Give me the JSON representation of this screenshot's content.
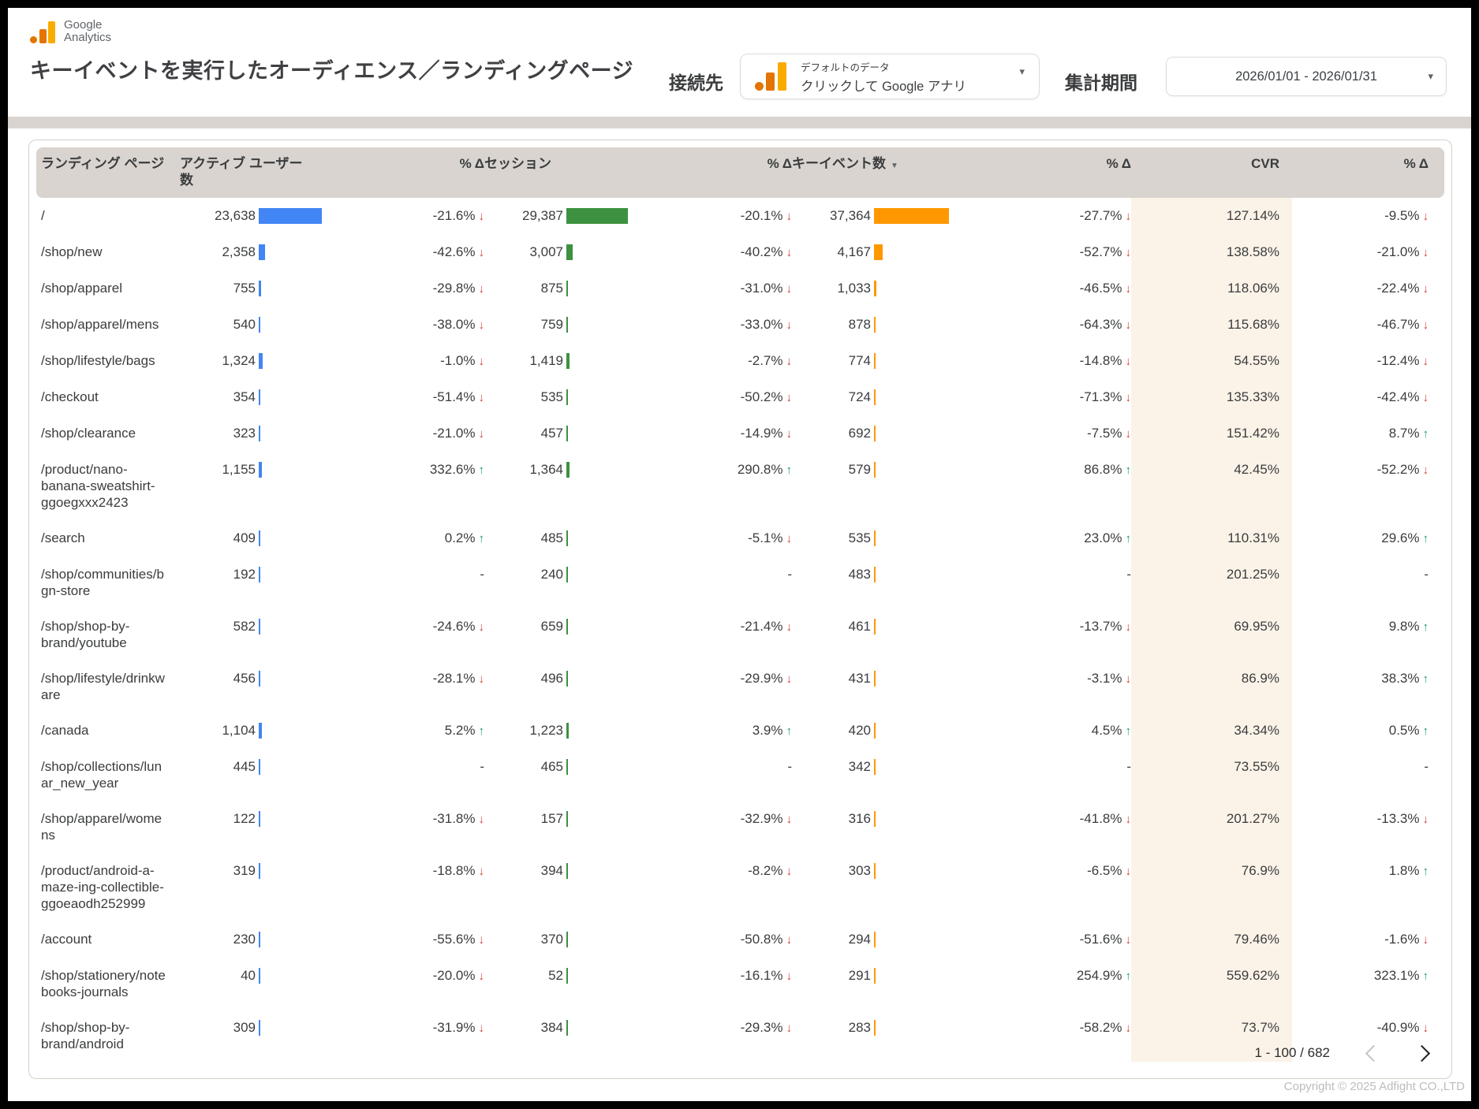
{
  "brand": {
    "logo_line1": "Google",
    "logo_line2": "Analytics"
  },
  "header": {
    "title": "キーイベントを実行したオーディエンス／ランディングページ",
    "connector_label": "接続先",
    "connector_value_line1": "デフォルトのデータ",
    "connector_value_line2": "クリックして Google アナリ",
    "period_label": "集計期間",
    "period_value": "2026/01/01 - 2026/01/31"
  },
  "icons": {
    "sort_desc": "▼",
    "caret": "▾",
    "arrow_up": "↑",
    "arrow_down": "↓"
  },
  "colors": {
    "accent_blue": "#4285f4",
    "accent_green": "#3d9140",
    "accent_orange": "#ff9800",
    "negative": "#cf3e36",
    "positive": "#169c5a",
    "header_bg": "#d9d4cf",
    "cvr_bg": "#fcf3e8"
  },
  "table": {
    "columns": {
      "page": "ランディング ページ",
      "users": "アクティブ ユーザー数",
      "delta": "% Δ",
      "sessions": "セッション",
      "events": "キーイベント数",
      "cvr": "CVR"
    },
    "pagination": "1 - 100 / 682",
    "rows": [
      {
        "page": "/",
        "users": "23,638",
        "users_delta": "-21.6%",
        "users_dir": "down",
        "sessions": "29,387",
        "sessions_delta": "-20.1%",
        "sessions_dir": "down",
        "events": "37,364",
        "events_delta": "-27.7%",
        "events_dir": "down",
        "cvr": "127.14%",
        "cvr_delta": "-9.5%",
        "cvr_dir": "down"
      },
      {
        "page": "/shop/new",
        "users": "2,358",
        "users_delta": "-42.6%",
        "users_dir": "down",
        "sessions": "3,007",
        "sessions_delta": "-40.2%",
        "sessions_dir": "down",
        "events": "4,167",
        "events_delta": "-52.7%",
        "events_dir": "down",
        "cvr": "138.58%",
        "cvr_delta": "-21.0%",
        "cvr_dir": "down"
      },
      {
        "page": "/shop/apparel",
        "users": "755",
        "users_delta": "-29.8%",
        "users_dir": "down",
        "sessions": "875",
        "sessions_delta": "-31.0%",
        "sessions_dir": "down",
        "events": "1,033",
        "events_delta": "-46.5%",
        "events_dir": "down",
        "cvr": "118.06%",
        "cvr_delta": "-22.4%",
        "cvr_dir": "down"
      },
      {
        "page": "/shop/apparel/mens",
        "users": "540",
        "users_delta": "-38.0%",
        "users_dir": "down",
        "sessions": "759",
        "sessions_delta": "-33.0%",
        "sessions_dir": "down",
        "events": "878",
        "events_delta": "-64.3%",
        "events_dir": "down",
        "cvr": "115.68%",
        "cvr_delta": "-46.7%",
        "cvr_dir": "down"
      },
      {
        "page": "/shop/lifestyle/bags",
        "users": "1,324",
        "users_delta": "-1.0%",
        "users_dir": "down",
        "sessions": "1,419",
        "sessions_delta": "-2.7%",
        "sessions_dir": "down",
        "events": "774",
        "events_delta": "-14.8%",
        "events_dir": "down",
        "cvr": "54.55%",
        "cvr_delta": "-12.4%",
        "cvr_dir": "down"
      },
      {
        "page": "/checkout",
        "users": "354",
        "users_delta": "-51.4%",
        "users_dir": "down",
        "sessions": "535",
        "sessions_delta": "-50.2%",
        "sessions_dir": "down",
        "events": "724",
        "events_delta": "-71.3%",
        "events_dir": "down",
        "cvr": "135.33%",
        "cvr_delta": "-42.4%",
        "cvr_dir": "down"
      },
      {
        "page": "/shop/clearance",
        "users": "323",
        "users_delta": "-21.0%",
        "users_dir": "down",
        "sessions": "457",
        "sessions_delta": "-14.9%",
        "sessions_dir": "down",
        "events": "692",
        "events_delta": "-7.5%",
        "events_dir": "down",
        "cvr": "151.42%",
        "cvr_delta": "8.7%",
        "cvr_dir": "up"
      },
      {
        "page": "/product/nano-banana-sweatshirt-ggoegxxx2423",
        "users": "1,155",
        "users_delta": "332.6%",
        "users_dir": "up",
        "sessions": "1,364",
        "sessions_delta": "290.8%",
        "sessions_dir": "up",
        "events": "579",
        "events_delta": "86.8%",
        "events_dir": "up",
        "cvr": "42.45%",
        "cvr_delta": "-52.2%",
        "cvr_dir": "down"
      },
      {
        "page": "/search",
        "users": "409",
        "users_delta": "0.2%",
        "users_dir": "up",
        "sessions": "485",
        "sessions_delta": "-5.1%",
        "sessions_dir": "down",
        "events": "535",
        "events_delta": "23.0%",
        "events_dir": "up",
        "cvr": "110.31%",
        "cvr_delta": "29.6%",
        "cvr_dir": "up"
      },
      {
        "page": "/shop/communities/bgn-store",
        "users": "192",
        "users_delta": "-",
        "users_dir": "none",
        "sessions": "240",
        "sessions_delta": "-",
        "sessions_dir": "none",
        "events": "483",
        "events_delta": "-",
        "events_dir": "none",
        "cvr": "201.25%",
        "cvr_delta": "-",
        "cvr_dir": "none"
      },
      {
        "page": "/shop/shop-by-brand/youtube",
        "users": "582",
        "users_delta": "-24.6%",
        "users_dir": "down",
        "sessions": "659",
        "sessions_delta": "-21.4%",
        "sessions_dir": "down",
        "events": "461",
        "events_delta": "-13.7%",
        "events_dir": "down",
        "cvr": "69.95%",
        "cvr_delta": "9.8%",
        "cvr_dir": "up"
      },
      {
        "page": "/shop/lifestyle/drinkware",
        "users": "456",
        "users_delta": "-28.1%",
        "users_dir": "down",
        "sessions": "496",
        "sessions_delta": "-29.9%",
        "sessions_dir": "down",
        "events": "431",
        "events_delta": "-3.1%",
        "events_dir": "down",
        "cvr": "86.9%",
        "cvr_delta": "38.3%",
        "cvr_dir": "up"
      },
      {
        "page": "/canada",
        "users": "1,104",
        "users_delta": "5.2%",
        "users_dir": "up",
        "sessions": "1,223",
        "sessions_delta": "3.9%",
        "sessions_dir": "up",
        "events": "420",
        "events_delta": "4.5%",
        "events_dir": "up",
        "cvr": "34.34%",
        "cvr_delta": "0.5%",
        "cvr_dir": "up"
      },
      {
        "page": "/shop/collections/lunar_new_year",
        "users": "445",
        "users_delta": "-",
        "users_dir": "none",
        "sessions": "465",
        "sessions_delta": "-",
        "sessions_dir": "none",
        "events": "342",
        "events_delta": "-",
        "events_dir": "none",
        "cvr": "73.55%",
        "cvr_delta": "-",
        "cvr_dir": "none"
      },
      {
        "page": "/shop/apparel/womens",
        "users": "122",
        "users_delta": "-31.8%",
        "users_dir": "down",
        "sessions": "157",
        "sessions_delta": "-32.9%",
        "sessions_dir": "down",
        "events": "316",
        "events_delta": "-41.8%",
        "events_dir": "down",
        "cvr": "201.27%",
        "cvr_delta": "-13.3%",
        "cvr_dir": "down"
      },
      {
        "page": "/product/android-a-maze-ing-collectible-ggoeaodh252999",
        "users": "319",
        "users_delta": "-18.8%",
        "users_dir": "down",
        "sessions": "394",
        "sessions_delta": "-8.2%",
        "sessions_dir": "down",
        "events": "303",
        "events_delta": "-6.5%",
        "events_dir": "down",
        "cvr": "76.9%",
        "cvr_delta": "1.8%",
        "cvr_dir": "up"
      },
      {
        "page": "/account",
        "users": "230",
        "users_delta": "-55.6%",
        "users_dir": "down",
        "sessions": "370",
        "sessions_delta": "-50.8%",
        "sessions_dir": "down",
        "events": "294",
        "events_delta": "-51.6%",
        "events_dir": "down",
        "cvr": "79.46%",
        "cvr_delta": "-1.6%",
        "cvr_dir": "down"
      },
      {
        "page": "/shop/stationery/notebooks-journals",
        "users": "40",
        "users_delta": "-20.0%",
        "users_dir": "down",
        "sessions": "52",
        "sessions_delta": "-16.1%",
        "sessions_dir": "down",
        "events": "291",
        "events_delta": "254.9%",
        "events_dir": "up",
        "cvr": "559.62%",
        "cvr_delta": "323.1%",
        "cvr_dir": "up"
      },
      {
        "page": "/shop/shop-by-brand/android",
        "users": "309",
        "users_delta": "-31.9%",
        "users_dir": "down",
        "sessions": "384",
        "sessions_delta": "-29.3%",
        "sessions_dir": "down",
        "events": "283",
        "events_delta": "-58.2%",
        "events_dir": "down",
        "cvr": "73.7%",
        "cvr_delta": "-40.9%",
        "cvr_dir": "down"
      }
    ]
  },
  "footer": {
    "copyright": "Copyright © 2025 Adfight CO.,LTD"
  }
}
